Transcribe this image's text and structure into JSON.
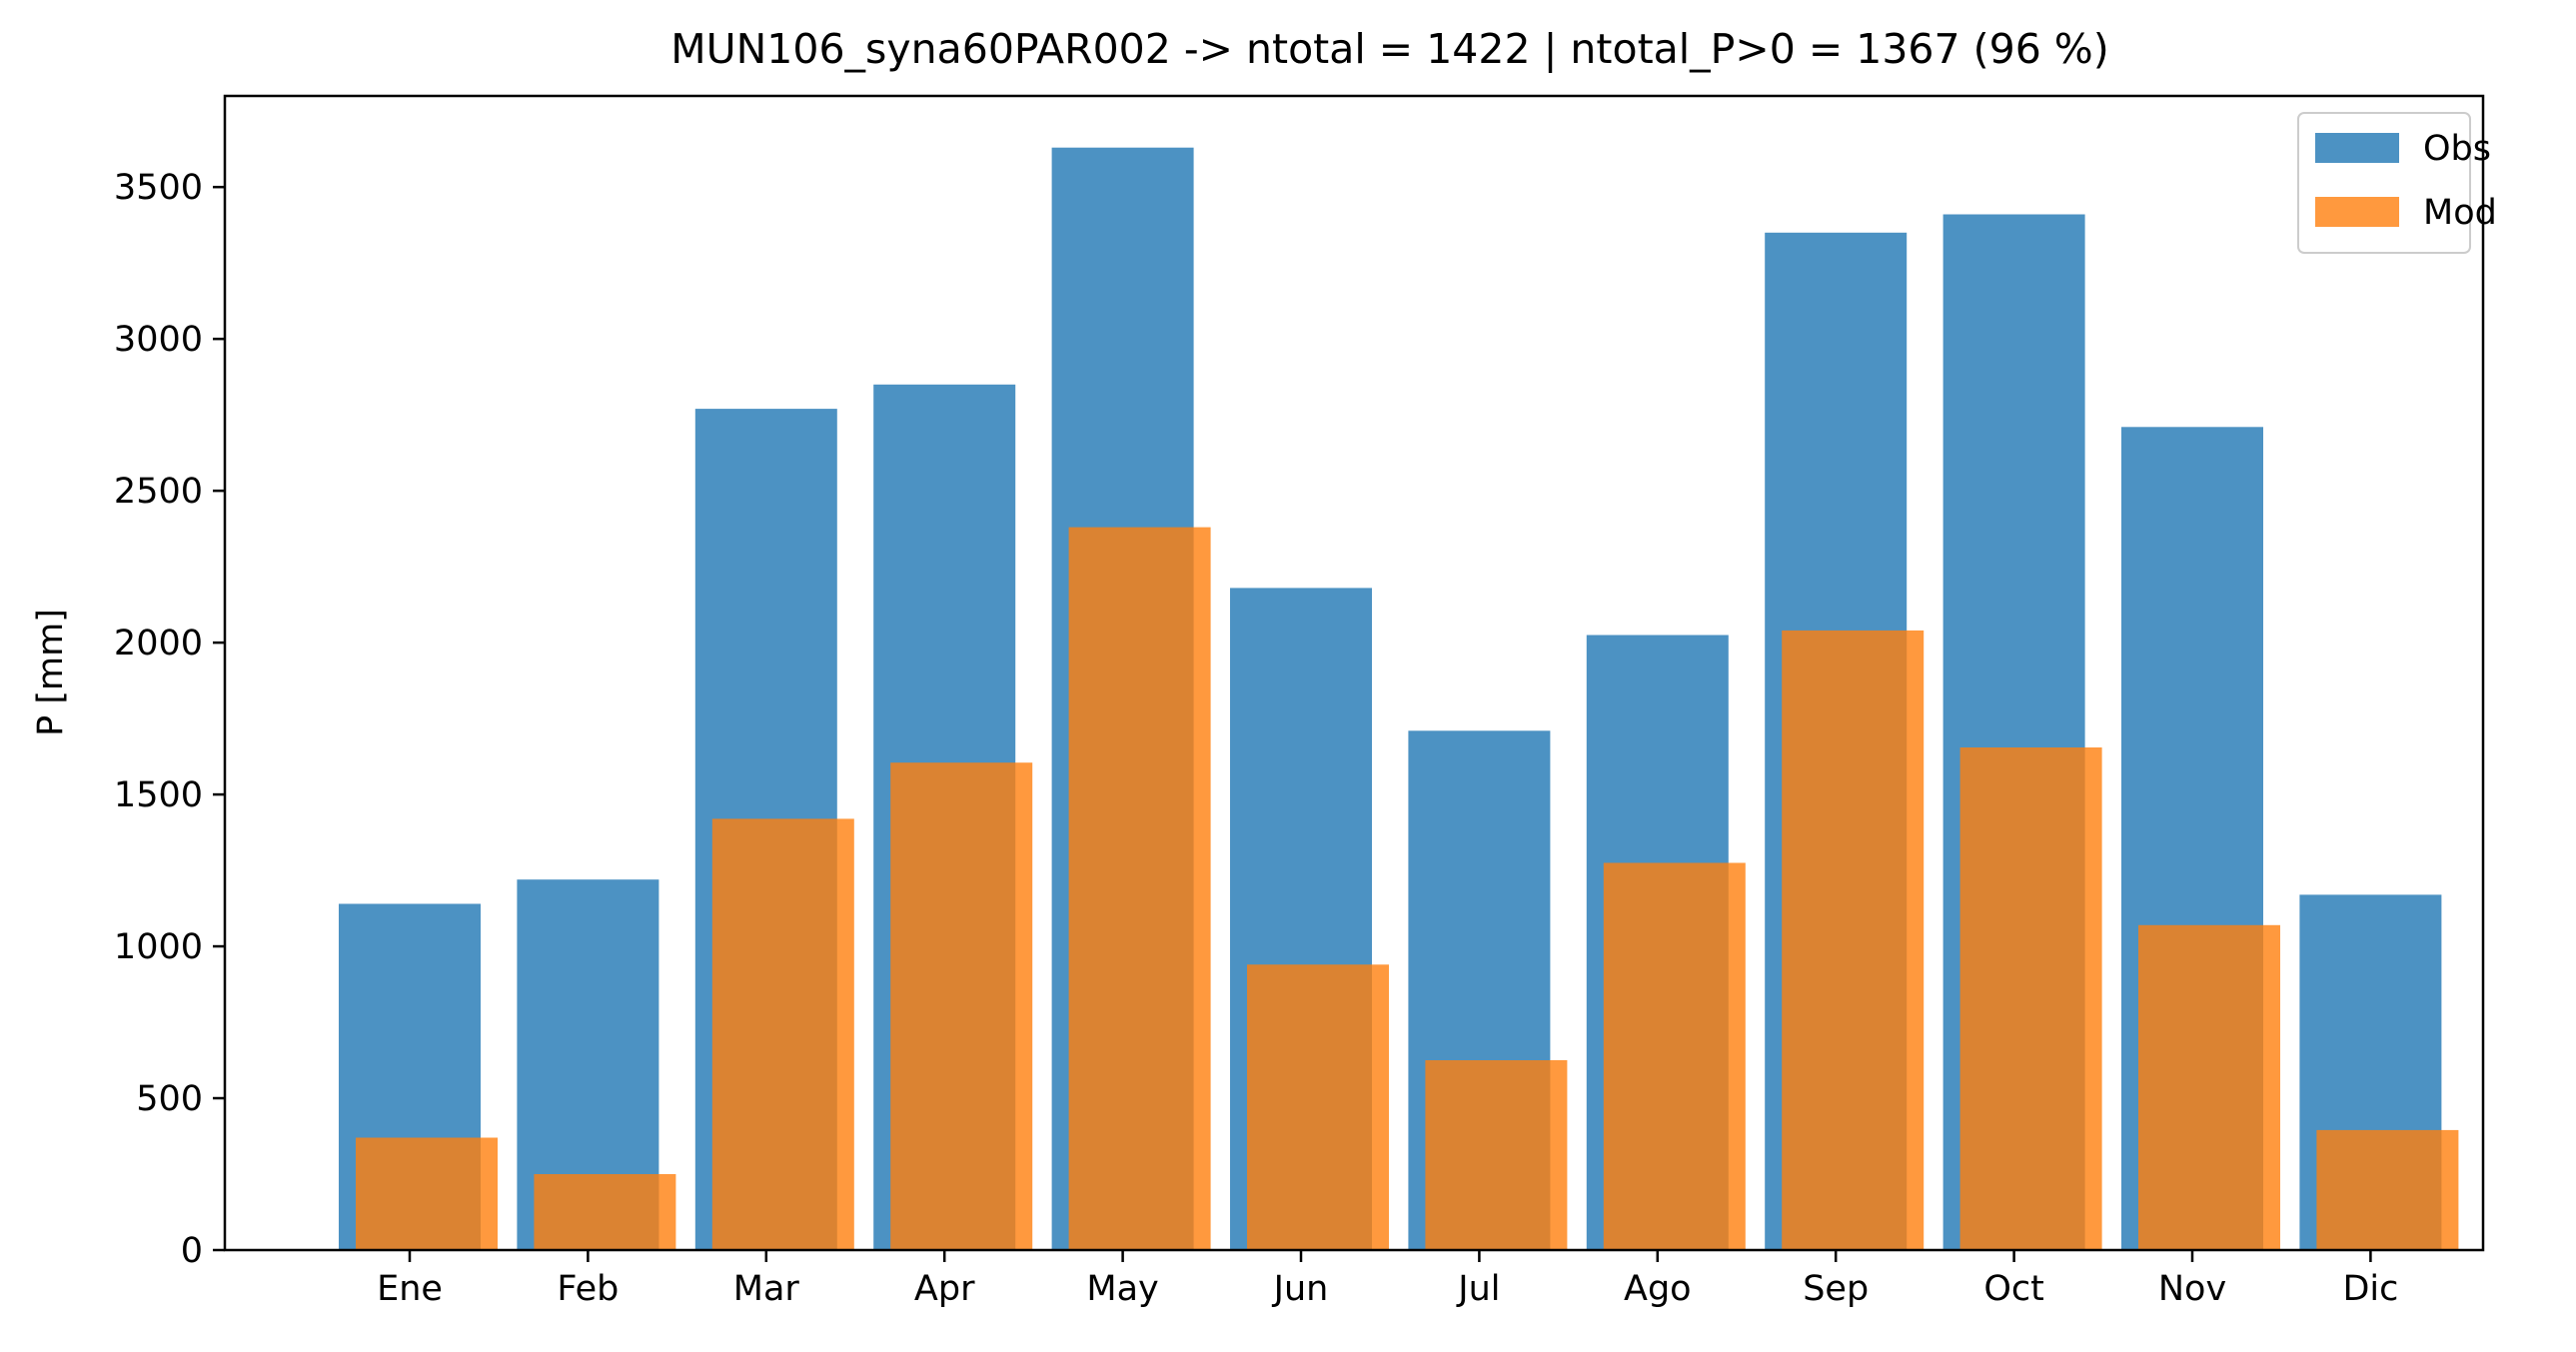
{
  "chart_data": {
    "type": "bar",
    "title": "MUN106_syna60PAR002 -> ntotal = 1422 | ntotal_P>0 = 1367 (96 %)",
    "xlabel": "",
    "ylabel": "P [mm]",
    "categories": [
      "Ene",
      "Feb",
      "Mar",
      "Apr",
      "May",
      "Jun",
      "Jul",
      "Ago",
      "Sep",
      "Oct",
      "Nov",
      "Dic"
    ],
    "series": [
      {
        "name": "Obs",
        "color": "#1f77b4",
        "values": [
          1140,
          1220,
          2770,
          2850,
          3630,
          2180,
          1710,
          2025,
          3350,
          3410,
          2710,
          1170
        ]
      },
      {
        "name": "Mod",
        "color": "#ff7f0e",
        "values": [
          370,
          250,
          1420,
          1605,
          2380,
          940,
          625,
          1275,
          2040,
          1655,
          1070,
          395
        ]
      }
    ],
    "ylim": [
      0,
      3800
    ],
    "yticks": [
      0,
      500,
      1000,
      1500,
      2000,
      2500,
      3000,
      3500
    ],
    "grid": false,
    "legend_position": "top-right"
  }
}
